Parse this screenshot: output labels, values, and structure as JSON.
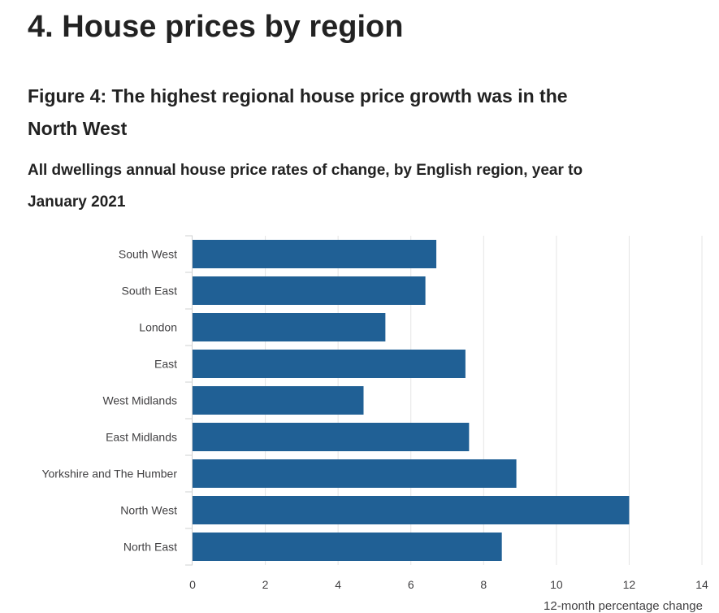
{
  "section": {
    "title": "4.  House prices by region"
  },
  "figure": {
    "title": "Figure 4: The highest regional house price growth was in the North West",
    "subtitle": "All dwellings annual house price rates of change, by English region, year to January 2021"
  },
  "colors": {
    "bar": "#206095",
    "grid": "#e4e4e4",
    "axis": "#cfd0d2"
  },
  "chart_data": {
    "type": "bar",
    "orientation": "horizontal",
    "categories": [
      "South West",
      "South East",
      "London",
      "East",
      "West Midlands",
      "East Midlands",
      "Yorkshire and The Humber",
      "North West",
      "North East"
    ],
    "values": [
      6.7,
      6.4,
      5.3,
      7.5,
      4.7,
      7.6,
      8.9,
      12.0,
      8.5
    ],
    "xlim": [
      0,
      14
    ],
    "xticks": [
      0,
      2,
      4,
      6,
      8,
      10,
      12,
      14
    ],
    "xlabel": "12-month percentage change",
    "ylabel": "",
    "grid": true,
    "legend": "none"
  }
}
